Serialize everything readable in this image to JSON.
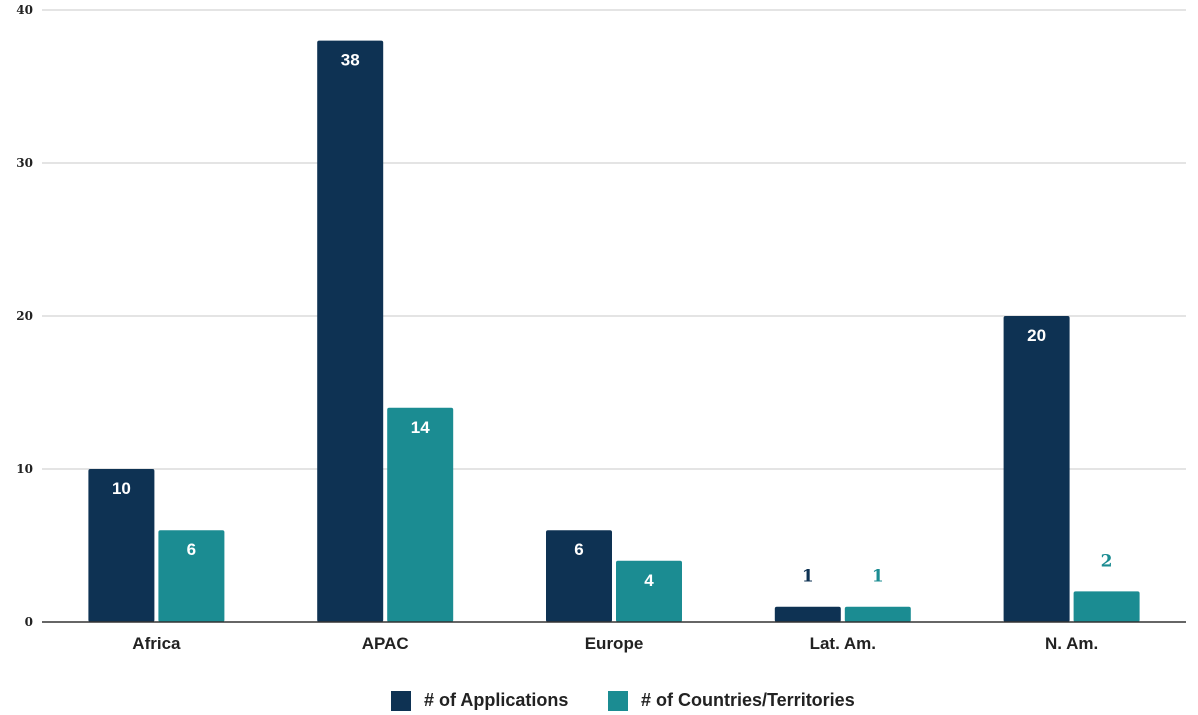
{
  "chart_data": {
    "type": "bar",
    "categories": [
      "Africa",
      "APAC",
      "Europe",
      "Lat. Am.",
      "N. Am."
    ],
    "series": [
      {
        "name": "# of Applications",
        "values": [
          10,
          38,
          6,
          1,
          20
        ],
        "color": "#0e3253"
      },
      {
        "name": "# of Countries/Territories",
        "values": [
          6,
          14,
          4,
          1,
          2
        ],
        "color": "#1b8c92"
      }
    ],
    "ylim": [
      0,
      40
    ],
    "yticks": [
      "0",
      "10",
      "20",
      "30",
      "40"
    ],
    "grid": true,
    "legend_position": "bottom",
    "data_labels": true
  }
}
